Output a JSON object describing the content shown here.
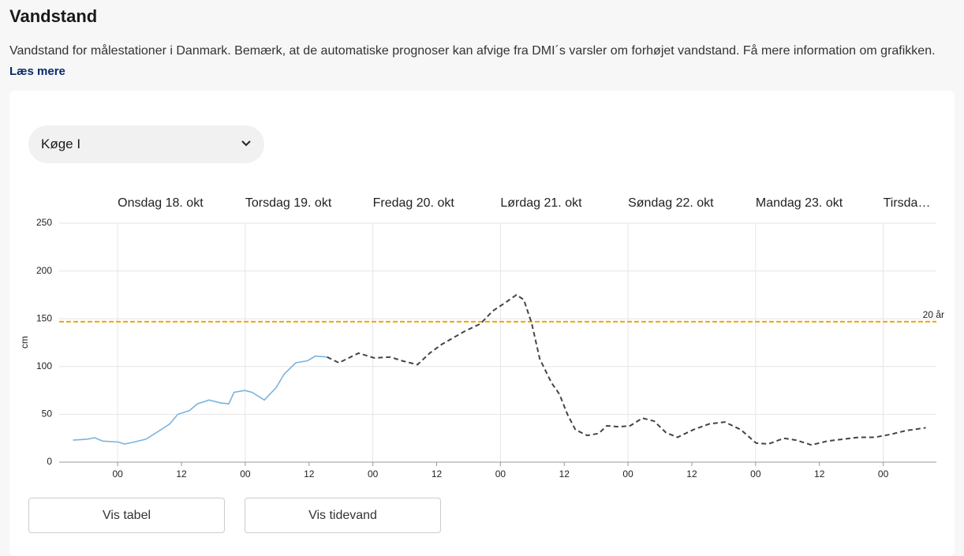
{
  "header": {
    "title": "Vandstand",
    "description": "Vandstand for målestationer i Danmark. Bemærk, at de automatiske prognoser kan afvige fra DMI´s varsler om forhøjet vandstand. Få mere information om grafikken.",
    "link": "Læs mere"
  },
  "station_select": {
    "label": "Køge I"
  },
  "chart_data": {
    "type": "line",
    "y_label": "cm",
    "xlim": [
      -11,
      154
    ],
    "xticks": [
      {
        "value": 0,
        "label": "00"
      },
      12,
      {
        "value": 24,
        "label": "00"
      },
      12,
      {
        "value": 48,
        "label": "00"
      },
      12,
      {
        "value": 72,
        "label": "00"
      },
      12,
      {
        "value": 96,
        "label": "00"
      },
      12,
      {
        "value": 120,
        "label": "00"
      },
      12,
      {
        "value": 144,
        "label": "00"
      }
    ],
    "ylim": [
      0,
      250
    ],
    "yticks": [
      0,
      50,
      100,
      150,
      200,
      250
    ],
    "grid": true,
    "day_labels": [
      {
        "value": 0,
        "label": "Onsdag 18. okt"
      },
      {
        "value": 24,
        "label": "Torsdag 19. okt"
      },
      {
        "value": 48,
        "label": "Fredag 20. okt"
      },
      {
        "value": 72,
        "label": "Lørdag 21. okt"
      },
      {
        "value": 96,
        "label": "Søndag 22. okt"
      },
      {
        "value": 120,
        "label": "Mandag 23. okt"
      },
      {
        "value": 144,
        "label": "Tirsda…"
      }
    ],
    "threshold": {
      "value": 147,
      "label": "20 år",
      "color": "#f0a500"
    },
    "series": [
      {
        "color": "#7ab4e0",
        "style": "solid",
        "x": [
          -8.4,
          -5.8,
          -4.3,
          -2.8,
          0.1,
          1.3,
          3.1,
          5.3,
          7.6,
          9.8,
          11.3,
          13.5,
          15,
          17.2,
          19.4,
          20.9,
          21.9,
          23.9,
          25.3,
          27.6,
          29.8,
          31.3,
          33.5,
          35.7,
          37.2,
          39.4
        ],
        "values": [
          23,
          24,
          25.5,
          22,
          21,
          19,
          21,
          24,
          32,
          40,
          50,
          54,
          61,
          65,
          62,
          61,
          73,
          75,
          73,
          65,
          78,
          92,
          104,
          106,
          111,
          110
        ]
      },
      {
        "color": "#444444",
        "style": "dashed",
        "x": [
          39.4,
          41.6,
          43.1,
          45.3,
          48.3,
          51.3,
          53.5,
          56.4,
          58.7,
          60.9,
          63.1,
          65.3,
          68.3,
          70.5,
          72.7,
          75,
          76.4,
          77.9,
          79.4,
          81.6,
          83.1,
          84.6,
          86.1,
          88.3,
          90.5,
          92,
          94.2,
          96.4,
          98.7,
          100.9,
          103.1,
          105.3,
          108.3,
          111.3,
          114.2,
          117.2,
          120.1,
          122.4,
          125.3,
          127.6,
          130.5,
          133.5,
          136.4,
          139.4,
          142.4,
          145.3,
          148.3,
          152
        ],
        "values": [
          110,
          104,
          108,
          114,
          109,
          110,
          106,
          102,
          114,
          123,
          130,
          137,
          145,
          158,
          166,
          175,
          170,
          145,
          108,
          83,
          71,
          50,
          34,
          28,
          30,
          38,
          37,
          38,
          46,
          43,
          31,
          26,
          34,
          40,
          42,
          34,
          20,
          19,
          25,
          23,
          18,
          22,
          24,
          26,
          26,
          29,
          33,
          36
        ]
      }
    ]
  },
  "buttons": [
    "Vis tabel",
    "Vis tidevand"
  ]
}
